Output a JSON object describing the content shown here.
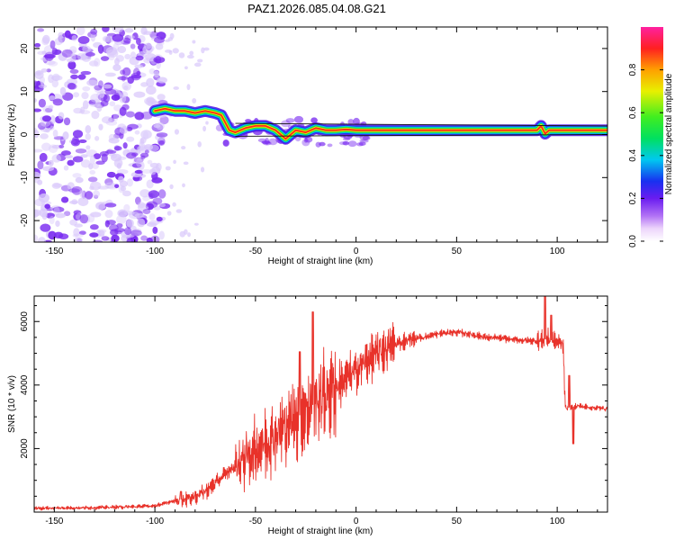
{
  "title": "PAZ1.2026.085.04.08.G21",
  "colors": {
    "snr_line": "#e8322a",
    "frame": "#000000",
    "ridge_core": "#ff2a1a",
    "ridge_mid": "#ffe000",
    "ridge_outer": "#22dd44",
    "ridge_edge": "#00ccee",
    "noise_blob": "#7a2cf0",
    "noise_light": "#d9c8fb"
  },
  "chart_data": [
    {
      "type": "heatmap",
      "name": "spectrogram",
      "xlabel": "Height of straight line (km)",
      "ylabel": "Frequency (Hz)",
      "xlim": [
        -160,
        125
      ],
      "ylim": [
        -25,
        25
      ],
      "xticks": [
        -150,
        -100,
        -50,
        0,
        50,
        100
      ],
      "yticks": [
        -20,
        -10,
        0,
        10,
        20
      ],
      "ridge": {
        "x": [
          -100,
          -95,
          -90,
          -85,
          -80,
          -75,
          -70,
          -67,
          -63,
          -60,
          -55,
          -50,
          -45,
          -40,
          -35,
          -30,
          -25,
          -20,
          -15,
          -10,
          -5,
          0,
          10,
          30,
          60,
          90,
          92,
          94,
          96,
          100,
          110,
          125
        ],
        "y": [
          5.5,
          6,
          5.5,
          5.5,
          5,
          5.5,
          5,
          4.5,
          1,
          0.5,
          1.5,
          2,
          2,
          1,
          -1,
          1,
          0.5,
          1.5,
          1,
          1,
          1.2,
          1,
          1,
          1,
          1,
          1,
          2,
          0.2,
          1,
          1,
          1,
          1
        ]
      },
      "noise_region_x": [
        -160,
        -95
      ]
    },
    {
      "type": "line",
      "name": "snr",
      "xlabel": "Height of straight line (km)",
      "ylabel": "SNR (10 * v/v)",
      "xlim": [
        -160,
        125
      ],
      "ylim": [
        0,
        6800
      ],
      "xticks": [
        -150,
        -100,
        -50,
        0,
        50,
        100
      ],
      "yticks": [
        2000,
        4000,
        6000
      ],
      "envelope_x": [
        -160,
        -130,
        -110,
        -100,
        -90,
        -80,
        -75,
        -70,
        -65,
        -60,
        -55,
        -50,
        -45,
        -40,
        -35,
        -30,
        -25,
        -20,
        -15,
        -10,
        -5,
        0,
        5,
        10,
        15,
        20,
        25,
        30,
        35,
        40,
        45,
        50,
        55,
        60,
        65,
        70,
        75,
        80,
        85,
        90,
        95,
        100,
        103,
        104,
        105,
        110,
        115,
        120,
        125
      ],
      "envelope_y": [
        120,
        140,
        170,
        200,
        350,
        500,
        650,
        900,
        1200,
        1450,
        1700,
        1950,
        2200,
        2450,
        2700,
        2950,
        3200,
        3450,
        3700,
        3950,
        4200,
        4450,
        4750,
        4950,
        5150,
        5300,
        5400,
        5480,
        5520,
        5600,
        5650,
        5660,
        5620,
        5560,
        5500,
        5480,
        5450,
        5420,
        5400,
        5380,
        5450,
        5350,
        5300,
        3300,
        3280,
        3350,
        3300,
        3280,
        3250
      ],
      "spikes": [
        {
          "x": -21.5,
          "y": 6300
        },
        {
          "x": -28,
          "y": 5050
        },
        {
          "x": 94,
          "y": 6800
        },
        {
          "x": 97,
          "y": 6200
        },
        {
          "x": 108,
          "y": 2150
        },
        {
          "x": 106,
          "y": 4300
        },
        {
          "x": -87,
          "y": 650
        }
      ]
    }
  ],
  "colorbar": {
    "label": "Normalized spectral amplitude",
    "ticks": [
      "0.0",
      "0.2",
      "0.4",
      "0.6",
      "0.8"
    ],
    "range": [
      0,
      1
    ]
  }
}
